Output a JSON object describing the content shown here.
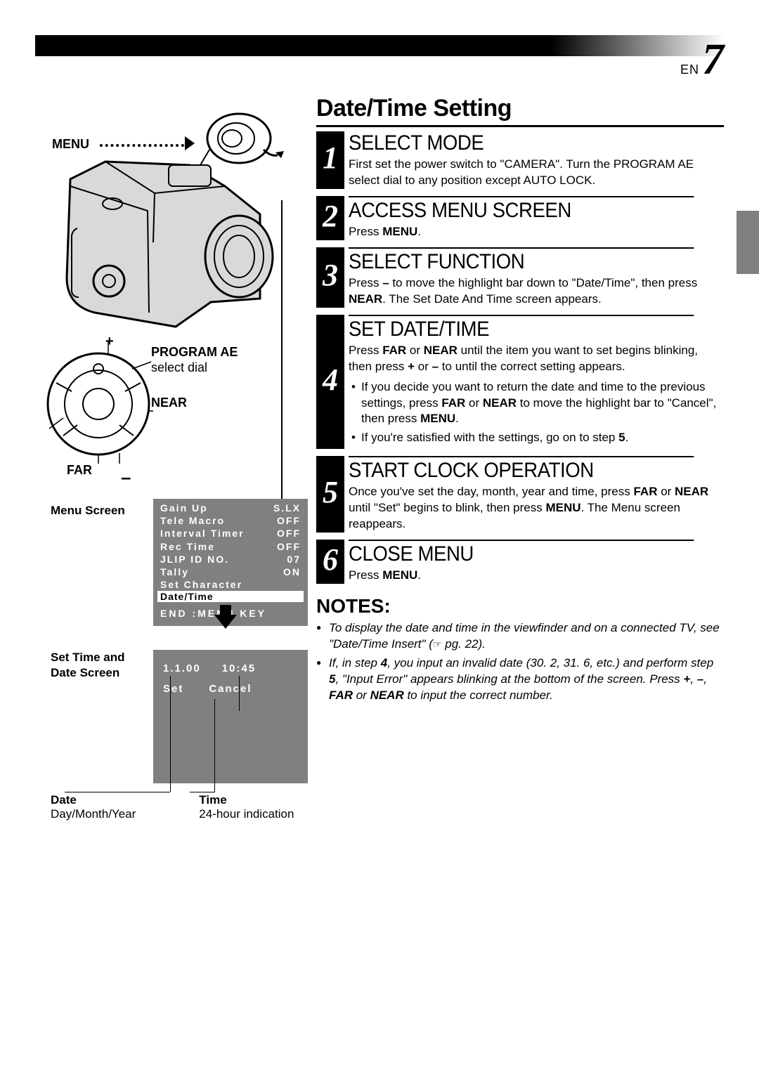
{
  "page": {
    "lang_code": "EN",
    "number": "7"
  },
  "left": {
    "menu_label": "MENU",
    "plus": "+",
    "minus": "–",
    "far_label": "FAR",
    "near_label": "NEAR",
    "program_ae_bold": "PROGRAM AE",
    "program_ae_sub": "select dial",
    "menu_screen_label": "Menu Screen",
    "menu_items": [
      {
        "name": "Gain Up",
        "val": "S.LX"
      },
      {
        "name": "Tele Macro",
        "val": "OFF"
      },
      {
        "name": "Interval Timer",
        "val": "OFF"
      },
      {
        "name": "Rec Time",
        "val": "OFF"
      },
      {
        "name": "JLIP ID NO.",
        "val": "07"
      },
      {
        "name": "Tally",
        "val": "ON"
      },
      {
        "name": "Set Character",
        "val": ""
      }
    ],
    "menu_highlight": "Date/Time",
    "menu_end": "END :MENU KEY",
    "settime_label_1": "Set Time and",
    "settime_label_2": "Date Screen",
    "time_box": {
      "date": "1.1.00",
      "time": "10:45",
      "set": "Set",
      "cancel": "Cancel"
    },
    "date_label_b": "Date",
    "date_label": "Day/Month/Year",
    "time_label_b": "Time",
    "time_label": "24-hour indication"
  },
  "right": {
    "title": "Date/Time Setting",
    "steps": [
      {
        "num": "1",
        "heading": "SELECT MODE",
        "body_html": "First set the power switch to \"CAMERA\". Turn the PROGRAM AE select dial to any position except AUTO LOCK."
      },
      {
        "num": "2",
        "heading": "ACCESS MENU SCREEN",
        "body_html": "Press <span class=\"b\">MENU</span>."
      },
      {
        "num": "3",
        "heading": "SELECT FUNCTION",
        "body_html": "Press <span class=\"b\">–</span> to move the highlight bar down to \"Date/Time\", then press <span class=\"b\">NEAR</span>. The Set Date And Time screen appears."
      },
      {
        "num": "4",
        "heading": "SET DATE/TIME",
        "body_html": "Press <span class=\"b\">FAR</span> or <span class=\"b\">NEAR</span> until the item you want to set begins blinking, then press <span class=\"b\">+</span> or <span class=\"b\">–</span> to until the correct setting appears.",
        "bullets": [
          "If you decide you want to return the date and time to the previous settings, press <span class=\"b\">FAR</span> or <span class=\"b\">NEAR</span> to move the highlight bar to \"Cancel\", then press <span class=\"b\">MENU</span>.",
          "If you're satisfied with the settings, go on to step <span class=\"b\">5</span>."
        ]
      },
      {
        "num": "5",
        "heading": "START CLOCK OPERATION",
        "body_html": "Once you've set the day, month, year and time, press <span class=\"b\">FAR</span> or <span class=\"b\">NEAR</span> until \"Set\" begins to blink, then press <span class=\"b\">MENU</span>. The Menu screen reappears."
      },
      {
        "num": "6",
        "heading": "CLOSE MENU",
        "body_html": "Press <span class=\"b\">MENU</span>."
      }
    ],
    "notes_heading": "NOTES:",
    "notes": [
      "To display the date and time in the viewfinder and on a connected TV, see \"Date/Time Insert\" (<span class=\"hand-icon\">☞</span> pg. 22).",
      "If, in step <span class=\"b\">4</span>, you input an invalid date (30. 2, 31. 6, etc.) and perform step <span class=\"b\">5</span>, \"Input Error\" appears blinking at the bottom of the screen. Press <span class=\"b\">+</span>, <span class=\"b\">–</span>, <span class=\"b\">FAR</span> or <span class=\"b\">NEAR</span> to input the correct number."
    ]
  },
  "colors": {
    "gray": "#808080",
    "black": "#000000",
    "white": "#ffffff",
    "camera_fill": "#d9d9d9"
  }
}
